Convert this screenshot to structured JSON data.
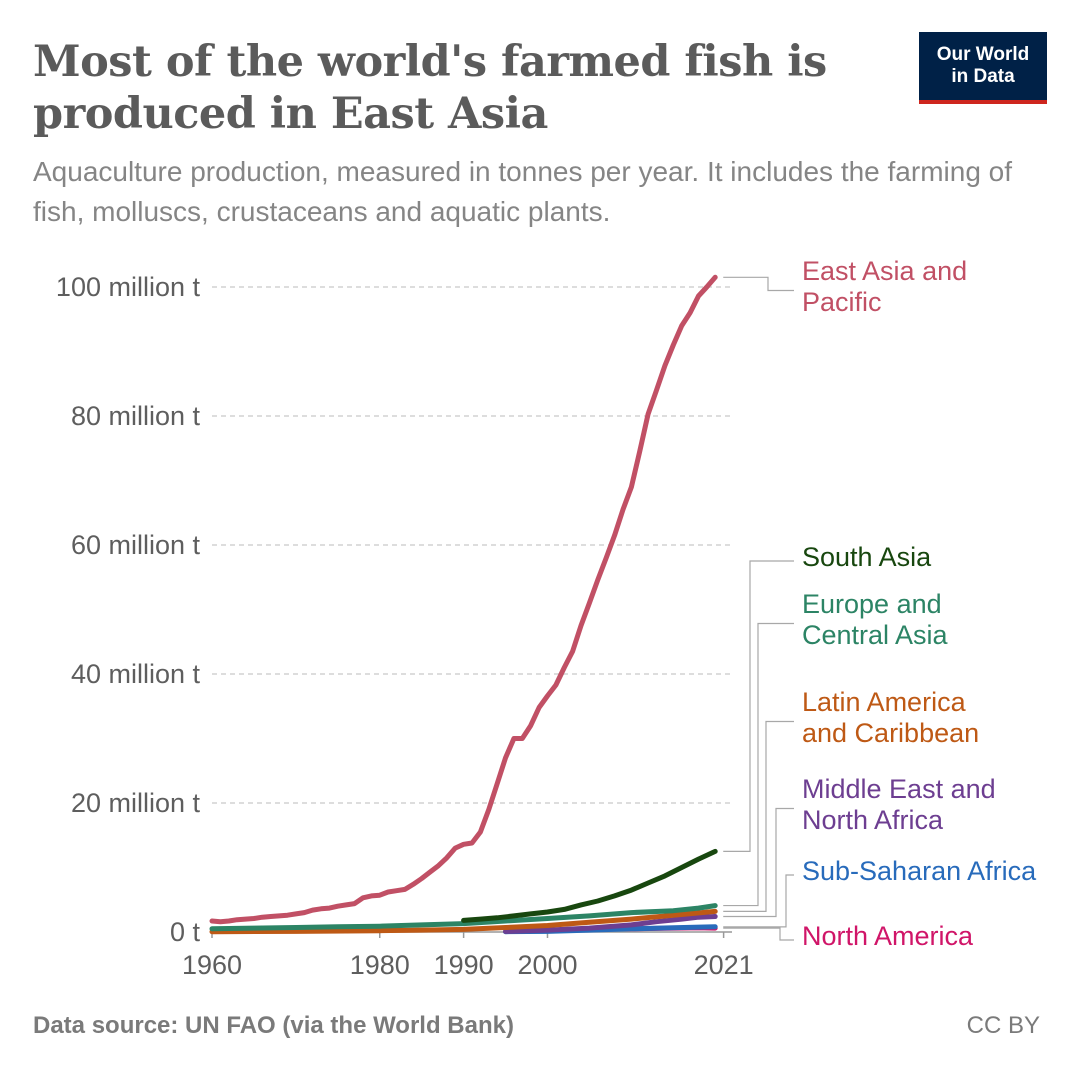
{
  "header": {
    "title": "Most of the world's farmed fish is produced in East Asia",
    "subtitle": "Aquaculture production, measured in tonnes per year. It includes the farming of fish, molluscs, crustaceans and aquatic plants.",
    "logo_line1": "Our World",
    "logo_line2": "in Data"
  },
  "footer": {
    "source": "Data source: UN FAO (via the World Bank)",
    "license": "CC BY"
  },
  "chart_data": {
    "type": "line",
    "title": "Most of the world's farmed fish is produced in East Asia",
    "subtitle": "Aquaculture production, measured in tonnes per year. It includes the farming of fish, molluscs, crustaceans and aquatic plants.",
    "xlabel": "",
    "ylabel": "",
    "xlim": [
      1960,
      2022
    ],
    "ylim": [
      0,
      100000000
    ],
    "x_ticks": [
      1960,
      1980,
      1990,
      2000,
      2021
    ],
    "x_tick_labels": [
      "1960",
      "1980",
      "1990",
      "2000",
      "2021"
    ],
    "y_ticks": [
      0,
      20000000,
      40000000,
      60000000,
      80000000,
      100000000
    ],
    "y_tick_labels": [
      "0 t",
      "20 million t",
      "40 million t",
      "60 million t",
      "80 million t",
      "100 million t"
    ],
    "grid": "horizontal dashed",
    "legend": "right, labels at line ends",
    "series": [
      {
        "name": "East Asia and Pacific",
        "label_lines": [
          "East Asia and",
          "Pacific"
        ],
        "color": "#c15065",
        "points": [
          [
            1960,
            1700000
          ],
          [
            1961,
            1600000
          ],
          [
            1962,
            1700000
          ],
          [
            1963,
            1900000
          ],
          [
            1964,
            2000000
          ],
          [
            1965,
            2100000
          ],
          [
            1966,
            2300000
          ],
          [
            1967,
            2400000
          ],
          [
            1968,
            2500000
          ],
          [
            1969,
            2600000
          ],
          [
            1970,
            2800000
          ],
          [
            1971,
            3000000
          ],
          [
            1972,
            3400000
          ],
          [
            1973,
            3600000
          ],
          [
            1974,
            3700000
          ],
          [
            1975,
            4000000
          ],
          [
            1976,
            4200000
          ],
          [
            1977,
            4400000
          ],
          [
            1978,
            5300000
          ],
          [
            1979,
            5600000
          ],
          [
            1980,
            5700000
          ],
          [
            1981,
            6200000
          ],
          [
            1982,
            6400000
          ],
          [
            1983,
            6600000
          ],
          [
            1984,
            7400000
          ],
          [
            1985,
            8300000
          ],
          [
            1986,
            9300000
          ],
          [
            1987,
            10300000
          ],
          [
            1988,
            11500000
          ],
          [
            1989,
            13000000
          ],
          [
            1990,
            13600000
          ],
          [
            1991,
            13800000
          ],
          [
            1992,
            15500000
          ],
          [
            1993,
            19000000
          ],
          [
            1994,
            23000000
          ],
          [
            1995,
            27000000
          ],
          [
            1996,
            30000000
          ],
          [
            1997,
            30000000
          ],
          [
            1998,
            32000000
          ],
          [
            1999,
            34800000
          ],
          [
            2000,
            36600000
          ],
          [
            2001,
            38300000
          ],
          [
            2002,
            41000000
          ],
          [
            2003,
            43500000
          ],
          [
            2004,
            47500000
          ],
          [
            2005,
            51000000
          ],
          [
            2006,
            54600000
          ],
          [
            2007,
            58000000
          ],
          [
            2008,
            61500000
          ],
          [
            2009,
            65500000
          ],
          [
            2010,
            69000000
          ],
          [
            2011,
            74500000
          ],
          [
            2012,
            80300000
          ],
          [
            2013,
            84000000
          ],
          [
            2014,
            87800000
          ],
          [
            2015,
            91000000
          ],
          [
            2016,
            94000000
          ],
          [
            2017,
            96000000
          ],
          [
            2018,
            98600000
          ],
          [
            2019,
            100000000
          ],
          [
            2020,
            101500000
          ]
        ]
      },
      {
        "name": "South Asia",
        "label_lines": [
          "South Asia"
        ],
        "color": "#18470f",
        "points": [
          [
            1990,
            1800000
          ],
          [
            1992,
            2000000
          ],
          [
            1994,
            2200000
          ],
          [
            1996,
            2500000
          ],
          [
            1998,
            2800000
          ],
          [
            2000,
            3100000
          ],
          [
            2002,
            3500000
          ],
          [
            2004,
            4200000
          ],
          [
            2006,
            4800000
          ],
          [
            2008,
            5600000
          ],
          [
            2010,
            6500000
          ],
          [
            2012,
            7600000
          ],
          [
            2014,
            8700000
          ],
          [
            2016,
            10000000
          ],
          [
            2018,
            11300000
          ],
          [
            2020,
            12500000
          ]
        ]
      },
      {
        "name": "Europe and Central Asia",
        "label_lines": [
          "Europe and",
          "Central Asia"
        ],
        "color": "#2c8465",
        "points": [
          [
            1960,
            500000
          ],
          [
            1965,
            600000
          ],
          [
            1970,
            700000
          ],
          [
            1975,
            800000
          ],
          [
            1980,
            900000
          ],
          [
            1985,
            1100000
          ],
          [
            1990,
            1300000
          ],
          [
            1995,
            1700000
          ],
          [
            2000,
            2100000
          ],
          [
            2005,
            2500000
          ],
          [
            2010,
            3000000
          ],
          [
            2015,
            3300000
          ],
          [
            2018,
            3700000
          ],
          [
            2020,
            4100000
          ]
        ]
      },
      {
        "name": "Latin America and Caribbean",
        "label_lines": [
          "Latin America",
          "and Caribbean"
        ],
        "color": "#be5915",
        "points": [
          [
            1960,
            50000
          ],
          [
            1970,
            100000
          ],
          [
            1980,
            200000
          ],
          [
            1985,
            300000
          ],
          [
            1990,
            400000
          ],
          [
            1995,
            700000
          ],
          [
            2000,
            1000000
          ],
          [
            2005,
            1500000
          ],
          [
            2010,
            2000000
          ],
          [
            2015,
            2600000
          ],
          [
            2020,
            3200000
          ]
        ]
      },
      {
        "name": "Middle East and North Africa",
        "label_lines": [
          "Middle East and",
          "North Africa"
        ],
        "color": "#6d3e91",
        "points": [
          [
            1995,
            100000
          ],
          [
            2000,
            300000
          ],
          [
            2005,
            600000
          ],
          [
            2010,
            1100000
          ],
          [
            2013,
            1600000
          ],
          [
            2016,
            2000000
          ],
          [
            2018,
            2300000
          ],
          [
            2020,
            2400000
          ]
        ]
      },
      {
        "name": "Sub-Saharan Africa",
        "label_lines": [
          "Sub-Saharan Africa"
        ],
        "color": "#286bbb",
        "points": [
          [
            1995,
            50000
          ],
          [
            2000,
            100000
          ],
          [
            2005,
            300000
          ],
          [
            2010,
            500000
          ],
          [
            2015,
            650000
          ],
          [
            2020,
            800000
          ]
        ]
      },
      {
        "name": "North America",
        "label_lines": [
          "North America"
        ],
        "color": "#d01568",
        "points": [
          [
            2005,
            400000
          ],
          [
            2010,
            500000
          ],
          [
            2015,
            600000
          ],
          [
            2018,
            650000
          ],
          [
            2020,
            600000
          ]
        ]
      }
    ]
  }
}
